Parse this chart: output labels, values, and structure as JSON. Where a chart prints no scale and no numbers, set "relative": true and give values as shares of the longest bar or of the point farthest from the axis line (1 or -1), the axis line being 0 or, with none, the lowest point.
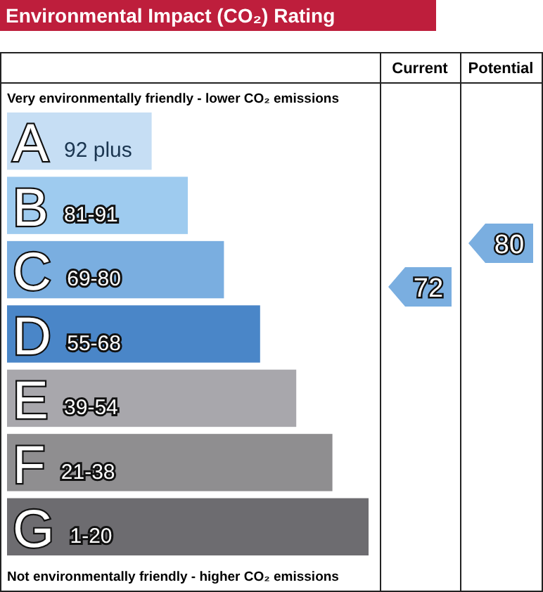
{
  "chart_data": {
    "type": "bar",
    "orientation": "horizontal",
    "relative": true,
    "title": "Environmental Impact (CO₂) Rating",
    "categories": [
      "A 92 plus",
      "B 81-91",
      "C 69-80",
      "D 55-68",
      "E 39-54",
      "F 21-38",
      "G 1-20"
    ],
    "values": [
      0.4,
      0.5,
      0.6,
      0.7,
      0.8,
      0.9,
      1
    ],
    "colors": [
      "#c6def4",
      "#9ecbef",
      "#7aaee0",
      "#4a86c8",
      "#a8a7ac",
      "#8f8e90",
      "#6d6c70"
    ],
    "annotations": [
      "Very environmentally friendly - lower CO₂ emissions",
      "Not environmentally friendly - higher CO₂ emissions",
      "Current",
      "Potential",
      "72",
      "80"
    ]
  }
}
